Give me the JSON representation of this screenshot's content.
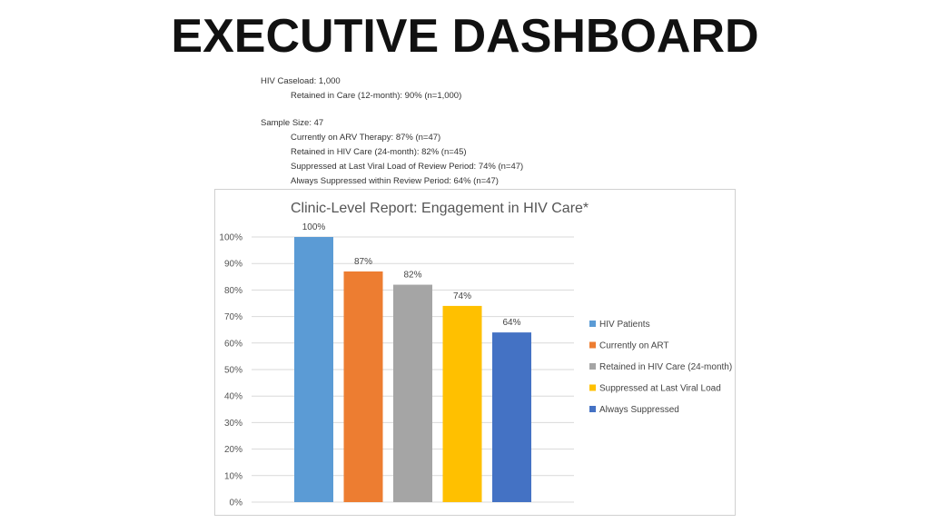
{
  "page": {
    "title": "EXECUTIVE DASHBOARD"
  },
  "stats": {
    "caseload": "HIV Caseload: 1,000",
    "retained_12": "Retained in Care (12-month): 90% (n=1,000)",
    "sample_size": "Sample Size: 47",
    "on_arv": "Currently on ARV Therapy: 87% (n=47)",
    "retained_24": "Retained in HIV Care (24-month): 82% (n=45)",
    "suppressed_last": "Suppressed at Last Viral Load of Review Period: 74% (n=47)",
    "always_suppressed": "Always Suppressed within Review Period: 64% (n=47)"
  },
  "chart_data": {
    "type": "bar",
    "title": "Clinic-Level Report: Engagement in HIV Care*",
    "categories": [
      "HIV Patients",
      "Currently on ART",
      "Retained in HIV Care (24-month)",
      "Suppressed at Last Viral Load",
      "Always Suppressed"
    ],
    "values": [
      100,
      87,
      82,
      74,
      64
    ],
    "data_labels": [
      "100%",
      "87%",
      "82%",
      "74%",
      "64%"
    ],
    "colors": [
      "#5b9bd5",
      "#ed7d31",
      "#a5a5a5",
      "#ffc000",
      "#4472c4"
    ],
    "ylim": [
      0,
      100
    ],
    "yticks": [
      0,
      10,
      20,
      30,
      40,
      50,
      60,
      70,
      80,
      90,
      100
    ],
    "ytick_labels": [
      "0%",
      "10%",
      "20%",
      "30%",
      "40%",
      "50%",
      "60%",
      "70%",
      "80%",
      "90%",
      "100%"
    ],
    "grid": true,
    "legend": "right",
    "xlabel": "",
    "ylabel": ""
  }
}
